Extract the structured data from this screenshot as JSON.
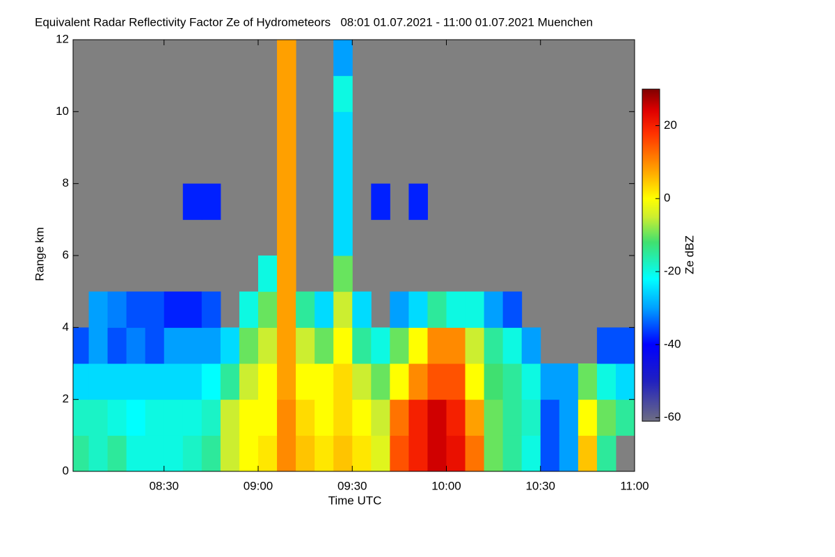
{
  "chart_data": {
    "type": "heatmap",
    "title": "Equivalent Radar Reflectivity Factor Ze of Hydrometeors   08:01 01.07.2021 - 11:00 01.07.2021 Muenchen",
    "x_label": "Time UTC",
    "y_label": "Range km",
    "colorbar_label": "Ze dBZ",
    "x": [
      3,
      9,
      15,
      21,
      27,
      33,
      39,
      45,
      51,
      57,
      63,
      69,
      75,
      81,
      87,
      93,
      99,
      105,
      111,
      117,
      123,
      129,
      135,
      141,
      147,
      153,
      159,
      165,
      171,
      177
    ],
    "y": [
      0.5,
      1.5,
      2.5,
      3.5,
      4.5,
      5.5,
      6.5,
      7.5,
      8.5,
      9.5,
      10.5,
      11.5
    ],
    "z": [
      [
        -15,
        -18,
        -15,
        -20,
        -20,
        -20,
        -18,
        -15,
        -5,
        0,
        2,
        10,
        5,
        2,
        5,
        2,
        -3,
        15,
        20,
        25,
        22,
        12,
        -10,
        -15,
        -20,
        -35,
        -30,
        5,
        -15,
        null
      ],
      [
        -18,
        -18,
        -20,
        -22,
        -20,
        -20,
        -20,
        -18,
        -5,
        0,
        0,
        10,
        3,
        0,
        3,
        0,
        -5,
        12,
        20,
        25,
        20,
        8,
        -10,
        -15,
        -18,
        -35,
        -30,
        0,
        -10,
        -15
      ],
      [
        -25,
        -25,
        -25,
        -25,
        -25,
        -25,
        -25,
        -22,
        -15,
        -5,
        0,
        8,
        0,
        0,
        3,
        -5,
        -10,
        0,
        10,
        15,
        15,
        0,
        -12,
        -15,
        -20,
        -30,
        -30,
        -10,
        -20,
        -25
      ],
      [
        -35,
        -30,
        -35,
        -32,
        -35,
        -30,
        -30,
        -30,
        -25,
        -10,
        -5,
        8,
        -5,
        -10,
        0,
        -15,
        -20,
        -10,
        0,
        10,
        10,
        -5,
        -15,
        -20,
        -30,
        null,
        null,
        null,
        -35,
        -35
      ],
      [
        null,
        -30,
        -32,
        -35,
        -35,
        -38,
        -38,
        -35,
        null,
        -20,
        -10,
        8,
        -15,
        -25,
        -5,
        -25,
        null,
        -30,
        -25,
        -15,
        -20,
        -20,
        -30,
        -35,
        null,
        null,
        null,
        null,
        null,
        null
      ],
      [
        null,
        null,
        null,
        null,
        null,
        null,
        null,
        null,
        null,
        null,
        -20,
        8,
        null,
        null,
        -10,
        null,
        null,
        null,
        null,
        null,
        null,
        null,
        null,
        null,
        null,
        null,
        null,
        null,
        null,
        null
      ],
      [
        null,
        null,
        null,
        null,
        null,
        null,
        null,
        null,
        null,
        null,
        null,
        8,
        null,
        null,
        -25,
        null,
        null,
        null,
        null,
        null,
        null,
        null,
        null,
        null,
        null,
        null,
        null,
        null,
        null,
        null
      ],
      [
        null,
        null,
        null,
        null,
        null,
        null,
        -38,
        -38,
        null,
        null,
        null,
        8,
        null,
        null,
        -25,
        null,
        -38,
        null,
        -38,
        null,
        null,
        null,
        null,
        null,
        null,
        null,
        null,
        null,
        null,
        null
      ],
      [
        null,
        null,
        null,
        null,
        null,
        null,
        null,
        null,
        null,
        null,
        null,
        8,
        null,
        null,
        -25,
        null,
        null,
        null,
        null,
        null,
        null,
        null,
        null,
        null,
        null,
        null,
        null,
        null,
        null,
        null
      ],
      [
        null,
        null,
        null,
        null,
        null,
        null,
        null,
        null,
        null,
        null,
        null,
        8,
        null,
        null,
        -25,
        null,
        null,
        null,
        null,
        null,
        null,
        null,
        null,
        null,
        null,
        null,
        null,
        null,
        null,
        null
      ],
      [
        null,
        null,
        null,
        null,
        null,
        null,
        null,
        null,
        null,
        null,
        null,
        8,
        null,
        null,
        -20,
        null,
        null,
        null,
        null,
        null,
        null,
        null,
        null,
        null,
        null,
        null,
        null,
        null,
        null,
        null
      ],
      [
        null,
        null,
        null,
        null,
        null,
        null,
        null,
        null,
        null,
        null,
        null,
        8,
        null,
        null,
        -30,
        null,
        null,
        null,
        null,
        null,
        null,
        null,
        null,
        null,
        null,
        null,
        null,
        null,
        null,
        null
      ]
    ],
    "xlim": [
      1,
      180
    ],
    "xticks": [
      {
        "value": 30,
        "label": "08:30"
      },
      {
        "value": 60,
        "label": "09:00"
      },
      {
        "value": 90,
        "label": "09:30"
      },
      {
        "value": 120,
        "label": "10:00"
      },
      {
        "value": 150,
        "label": "10:30"
      },
      {
        "value": 180,
        "label": "11:00"
      }
    ],
    "ylim": [
      0,
      12
    ],
    "yticks": [
      0,
      2,
      4,
      6,
      8,
      10,
      12
    ],
    "zlim": [
      -61,
      30
    ],
    "zticks": [
      -60,
      -40,
      -20,
      0,
      20
    ],
    "missing_color": "#808080",
    "colorscale": [
      [
        -61,
        "#6e6e82"
      ],
      [
        -50,
        "#2020c0"
      ],
      [
        -40,
        "#0000ff"
      ],
      [
        -30,
        "#00a0ff"
      ],
      [
        -22,
        "#00ffff"
      ],
      [
        -12,
        "#40e070"
      ],
      [
        -5,
        "#ccee30"
      ],
      [
        0,
        "#ffff00"
      ],
      [
        8,
        "#ffa000"
      ],
      [
        18,
        "#ff3000"
      ],
      [
        24,
        "#e00000"
      ],
      [
        30,
        "#800000"
      ]
    ]
  }
}
